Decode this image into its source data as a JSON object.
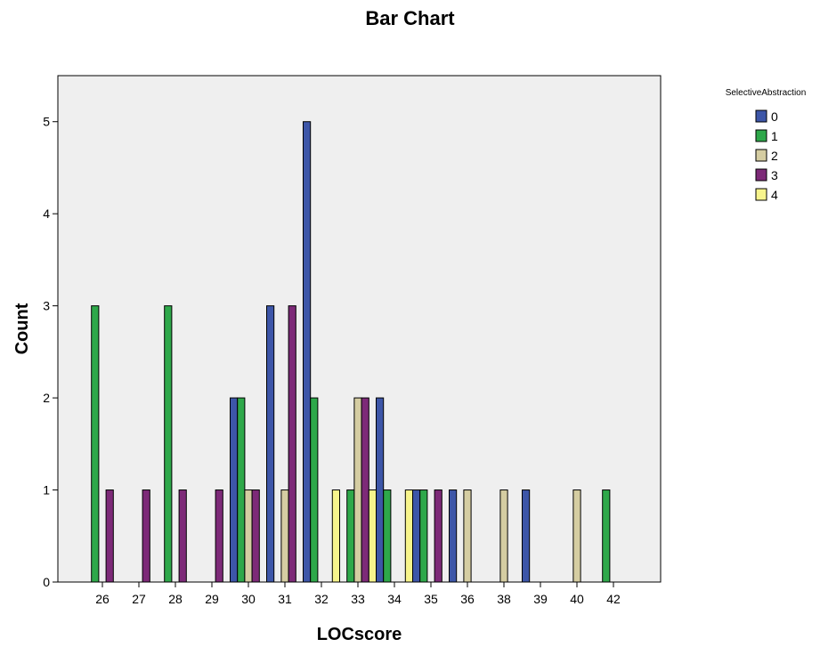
{
  "chart_data": {
    "type": "bar",
    "title": "Bar Chart",
    "xlabel": "LOCscore",
    "ylabel": "Count",
    "ylim": [
      0,
      5.5
    ],
    "yticks": [
      0,
      1,
      2,
      3,
      4,
      5
    ],
    "grid": false,
    "legend_position": "right",
    "legend_title": "SelectiveAbstraction",
    "categories": [
      "26",
      "27",
      "28",
      "29",
      "30",
      "31",
      "32",
      "33",
      "34",
      "35",
      "36",
      "38",
      "39",
      "40",
      "42"
    ],
    "series": [
      {
        "name": "0",
        "color": "#3D56A8",
        "values": [
          0,
          0,
          0,
          0,
          2,
          3,
          5,
          0,
          2,
          1,
          1,
          0,
          1,
          0,
          0
        ]
      },
      {
        "name": "1",
        "color": "#2EA84A",
        "values": [
          3,
          0,
          3,
          0,
          2,
          0,
          2,
          1,
          1,
          1,
          0,
          0,
          0,
          0,
          1
        ]
      },
      {
        "name": "2",
        "color": "#D5CDA2",
        "values": [
          0,
          0,
          0,
          0,
          1,
          1,
          0,
          2,
          0,
          0,
          1,
          1,
          0,
          1,
          0
        ]
      },
      {
        "name": "3",
        "color": "#7D2A78",
        "values": [
          1,
          1,
          1,
          1,
          1,
          3,
          0,
          2,
          0,
          1,
          0,
          0,
          0,
          0,
          0
        ]
      },
      {
        "name": "4",
        "color": "#F7F48C",
        "values": [
          0,
          0,
          0,
          0,
          0,
          0,
          1,
          1,
          1,
          0,
          0,
          0,
          0,
          0,
          0
        ]
      }
    ]
  }
}
